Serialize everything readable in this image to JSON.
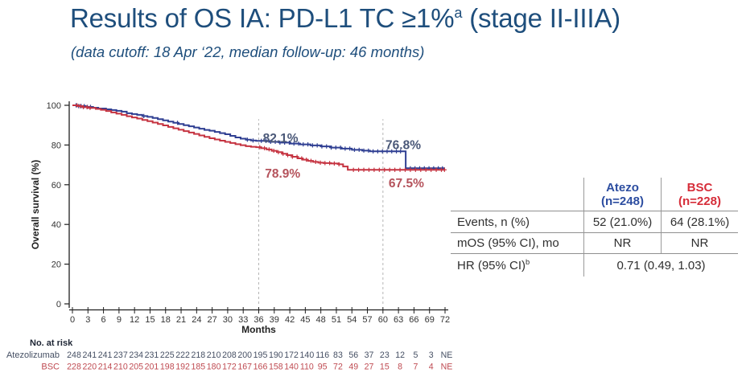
{
  "title": {
    "pre": "Results of OS IA: PD-L1 TC ≥1%",
    "sup": "a",
    "post": " (stage II-IIIA)"
  },
  "subtitle": "(data cutoff: 18 Apr ‘22, median follow-up: 46 months)",
  "colors": {
    "title_blue": "#1e4e7c",
    "curve_blue": "#2f3f92",
    "curve_red": "#c53340",
    "axis": "#1f1f1f",
    "dashed_reference": "#b5b5b5",
    "table_line": "#8f8f8f"
  },
  "chart_data": {
    "type": "line",
    "subtype": "kaplan-meier-step",
    "title": "",
    "xlabel": "Months",
    "ylabel": "Overall survival (%)",
    "xlim": [
      0,
      72
    ],
    "ylim": [
      0,
      100
    ],
    "xticks": [
      0,
      3,
      6,
      9,
      12,
      15,
      18,
      21,
      24,
      27,
      30,
      33,
      36,
      39,
      42,
      45,
      48,
      51,
      54,
      57,
      60,
      63,
      66,
      69,
      72
    ],
    "yticks": [
      0,
      20,
      40,
      60,
      80,
      100
    ],
    "grid": "off",
    "legend": "none",
    "reference_lines_x": [
      36,
      60
    ],
    "series": [
      {
        "name": "Atezolizumab",
        "color": "#2f3f92",
        "steps": [
          [
            0,
            100
          ],
          [
            1.2,
            99.6
          ],
          [
            2.5,
            99.2
          ],
          [
            4,
            98.8
          ],
          [
            5,
            98.4
          ],
          [
            6.5,
            98.0
          ],
          [
            7.5,
            97.6
          ],
          [
            8.5,
            97.2
          ],
          [
            9.5,
            96.8
          ],
          [
            10.5,
            96.0
          ],
          [
            11.5,
            95.6
          ],
          [
            12.5,
            95.2
          ],
          [
            13.5,
            94.6
          ],
          [
            14.5,
            94.2
          ],
          [
            15.5,
            93.6
          ],
          [
            16.5,
            93.0
          ],
          [
            17.5,
            92.4
          ],
          [
            18.5,
            91.8
          ],
          [
            19.5,
            91.2
          ],
          [
            20.5,
            90.6
          ],
          [
            21.5,
            90.0
          ],
          [
            22.5,
            89.4
          ],
          [
            23.5,
            88.8
          ],
          [
            24.5,
            88.2
          ],
          [
            25.5,
            87.6
          ],
          [
            26.5,
            87.2
          ],
          [
            27.5,
            86.6
          ],
          [
            28.5,
            86.0
          ],
          [
            29.5,
            85.4
          ],
          [
            30.5,
            84.6
          ],
          [
            31.5,
            83.8
          ],
          [
            32.5,
            83.2
          ],
          [
            33.5,
            82.7
          ],
          [
            34.5,
            82.3
          ],
          [
            35.5,
            82.1
          ],
          [
            38,
            81.6
          ],
          [
            40,
            81.2
          ],
          [
            42,
            80.7
          ],
          [
            44,
            80.3
          ],
          [
            46,
            79.8
          ],
          [
            48,
            79.3
          ],
          [
            50,
            78.7
          ],
          [
            52,
            78.2
          ],
          [
            54,
            77.6
          ],
          [
            56,
            77.2
          ],
          [
            57.5,
            76.8
          ],
          [
            64.4,
            68.3
          ],
          [
            71.8,
            68.3
          ]
        ],
        "censor_months": [
          0.7,
          1.2,
          1.7,
          2.3,
          2.9,
          3.5,
          13.8,
          20.3,
          33.8,
          34.9,
          36.5,
          37.4,
          38.3,
          39.2,
          40.1,
          41,
          41.9,
          42.8,
          43.7,
          44.6,
          45.5,
          46.4,
          47.3,
          48.2,
          49.1,
          50,
          50.9,
          51.8,
          52.7,
          53.6,
          54.5,
          55.4,
          56.3,
          57.2,
          58.1,
          59,
          59.9,
          60.8,
          61.7,
          62.6,
          63.4,
          65.3,
          66.2,
          67.1,
          68,
          68.9,
          69.8,
          70.7,
          71.5
        ]
      },
      {
        "name": "BSC",
        "color": "#c53340",
        "steps": [
          [
            0,
            100
          ],
          [
            1,
            99.6
          ],
          [
            2,
            99.1
          ],
          [
            3,
            98.7
          ],
          [
            4.5,
            98.2
          ],
          [
            5.5,
            97.7
          ],
          [
            6.5,
            97.1
          ],
          [
            7.5,
            96.4
          ],
          [
            8.5,
            95.8
          ],
          [
            9.5,
            95.2
          ],
          [
            10.5,
            94.5
          ],
          [
            11.5,
            93.9
          ],
          [
            12.5,
            93.3
          ],
          [
            13.5,
            92.6
          ],
          [
            14.5,
            92.0
          ],
          [
            15.5,
            91.3
          ],
          [
            16.5,
            90.6
          ],
          [
            17.5,
            89.9
          ],
          [
            18.5,
            89.1
          ],
          [
            19.5,
            88.4
          ],
          [
            20.5,
            87.7
          ],
          [
            21.5,
            87.0
          ],
          [
            22.5,
            86.3
          ],
          [
            23.5,
            85.6
          ],
          [
            24.5,
            84.8
          ],
          [
            25.5,
            84.1
          ],
          [
            26.5,
            83.4
          ],
          [
            27.5,
            82.8
          ],
          [
            28.5,
            82.2
          ],
          [
            29.5,
            81.6
          ],
          [
            30.5,
            81.0
          ],
          [
            31.5,
            80.4
          ],
          [
            32.5,
            79.9
          ],
          [
            33.5,
            79.4
          ],
          [
            34.5,
            79.1
          ],
          [
            35.5,
            78.9
          ],
          [
            36.5,
            78.4
          ],
          [
            37.5,
            77.8
          ],
          [
            38.5,
            77.1
          ],
          [
            39.5,
            76.4
          ],
          [
            40.5,
            75.6
          ],
          [
            41.5,
            74.9
          ],
          [
            42.5,
            74.1
          ],
          [
            43.5,
            73.3
          ],
          [
            44.5,
            72.6
          ],
          [
            45.5,
            72.0
          ],
          [
            46.5,
            71.5
          ],
          [
            47.5,
            71.1
          ],
          [
            48.5,
            70.9
          ],
          [
            50,
            70.7
          ],
          [
            51.5,
            70.3
          ],
          [
            52.3,
            69.2
          ],
          [
            53.2,
            67.5
          ],
          [
            71.9,
            67.5
          ]
        ],
        "censor_months": [
          0.9,
          1.5,
          2.1,
          2.8,
          3.4,
          36.2,
          37.1,
          38,
          38.9,
          39.8,
          40.7,
          41.6,
          42.5,
          43.4,
          44.3,
          45.2,
          46.1,
          47,
          47.9,
          48.8,
          49.7,
          50.6,
          51.5,
          54.3,
          55.3,
          56.3,
          57.3,
          58.3,
          59.3,
          60.3,
          61.3,
          62.3,
          63.3,
          64.3,
          65.3,
          66.3,
          67.3,
          68.3,
          69.3,
          70.3,
          71.3,
          71.9
        ]
      }
    ],
    "annotations": [
      {
        "text": "82.1%",
        "month": 36.8,
        "pct": 81.4,
        "color": "#4a5878"
      },
      {
        "text": "78.9%",
        "month": 37.2,
        "pct": 63.6,
        "color": "#b5535c"
      },
      {
        "text": "76.8%",
        "month": 60.5,
        "pct": 77.9,
        "color": "#4a5878"
      },
      {
        "text": "67.5%",
        "month": 61.1,
        "pct": 58.8,
        "color": "#b5535c"
      }
    ],
    "risk_table": {
      "title": "No. at risk",
      "rows": [
        {
          "label": "Atezolizumab",
          "color": "#454f63",
          "values": [
            "248",
            "241",
            "241",
            "237",
            "234",
            "231",
            "225",
            "222",
            "218",
            "210",
            "208",
            "200",
            "195",
            "190",
            "172",
            "140",
            "116",
            "83",
            "56",
            "37",
            "23",
            "12",
            "5",
            "3",
            "NE"
          ]
        },
        {
          "label": "BSC",
          "color": "#bf4b52",
          "values": [
            "228",
            "220",
            "214",
            "210",
            "205",
            "201",
            "198",
            "192",
            "185",
            "180",
            "172",
            "167",
            "166",
            "158",
            "140",
            "110",
            "95",
            "72",
            "49",
            "27",
            "15",
            "8",
            "7",
            "4",
            "NE"
          ]
        }
      ]
    }
  },
  "summary_table": {
    "columns": [
      {
        "line1": "Atezo",
        "line2": "(n=248)",
        "color": "#2c4da0"
      },
      {
        "line1": "BSC",
        "line2": "(n=228)",
        "color": "#d62d39"
      }
    ],
    "rows": [
      {
        "label": "Events, n (%)",
        "atezo": "52 (21.0%)",
        "bsc": "64 (28.1%)"
      },
      {
        "label": "mOS (95% CI), mo",
        "atezo": "NR",
        "bsc": "NR"
      }
    ],
    "hr_row": {
      "label": "HR (95% CI)",
      "sup": "b",
      "value": "0.71 (0.49, 1.03)"
    }
  }
}
